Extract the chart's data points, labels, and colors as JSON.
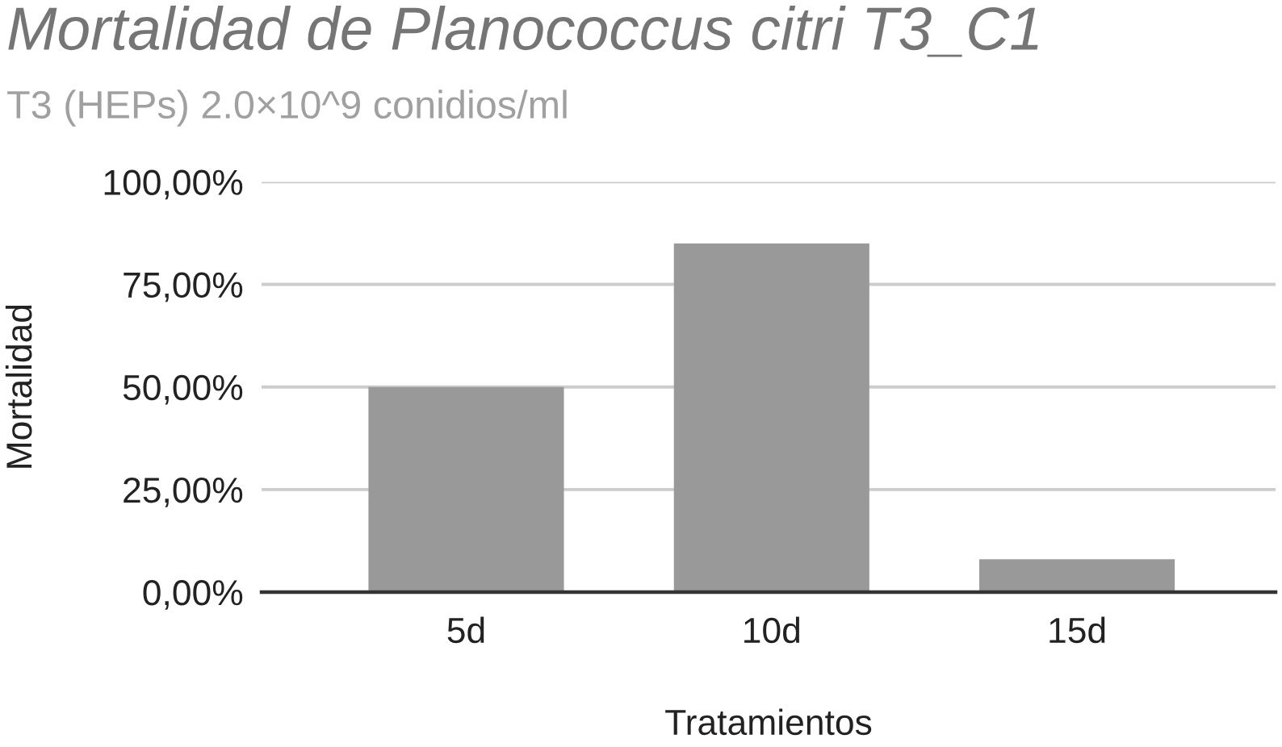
{
  "chart_data": {
    "type": "bar",
    "title": "Mortalidad de Planococcus citri T3_C1",
    "subtitle": "T3 (HEPs) 2.0×10^9 conidios/ml",
    "xlabel": "Tratamientos",
    "ylabel": "Mortalidad",
    "categories": [
      "5d",
      "10d",
      "15d"
    ],
    "values": [
      50,
      85,
      8
    ],
    "color": "#999999",
    "ylim": [
      0,
      100
    ],
    "yticks": [
      {
        "value": 0,
        "label": "0,00%"
      },
      {
        "value": 25,
        "label": "25,00%"
      },
      {
        "value": 50,
        "label": "50,00%"
      },
      {
        "value": 75,
        "label": "75,00%"
      },
      {
        "value": 100,
        "label": "100,00%"
      }
    ],
    "grid": "y",
    "legend": false
  }
}
